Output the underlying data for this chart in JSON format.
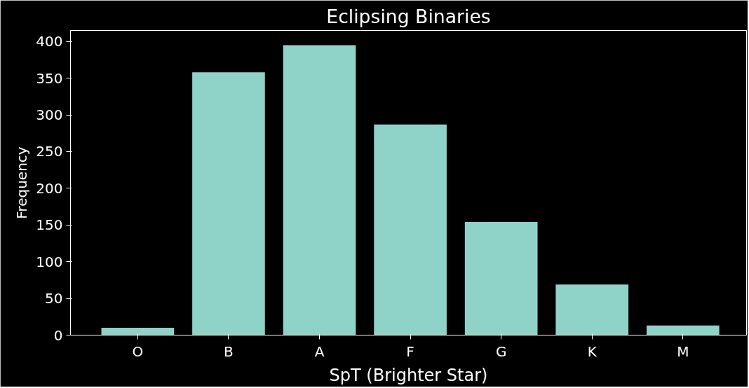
{
  "chart_data": {
    "type": "bar",
    "title": "Eclipsing Binaries",
    "xlabel": "SpT (Brighter Star)",
    "ylabel": "Frequency",
    "categories": [
      "O",
      "B",
      "A",
      "F",
      "G",
      "K",
      "M"
    ],
    "values": [
      10,
      358,
      395,
      287,
      154,
      69,
      13
    ],
    "color": "#8fd3c8",
    "ylim": [
      0,
      415
    ],
    "yticks": [
      0,
      50,
      100,
      150,
      200,
      250,
      300,
      350,
      400
    ],
    "grid": false
  }
}
